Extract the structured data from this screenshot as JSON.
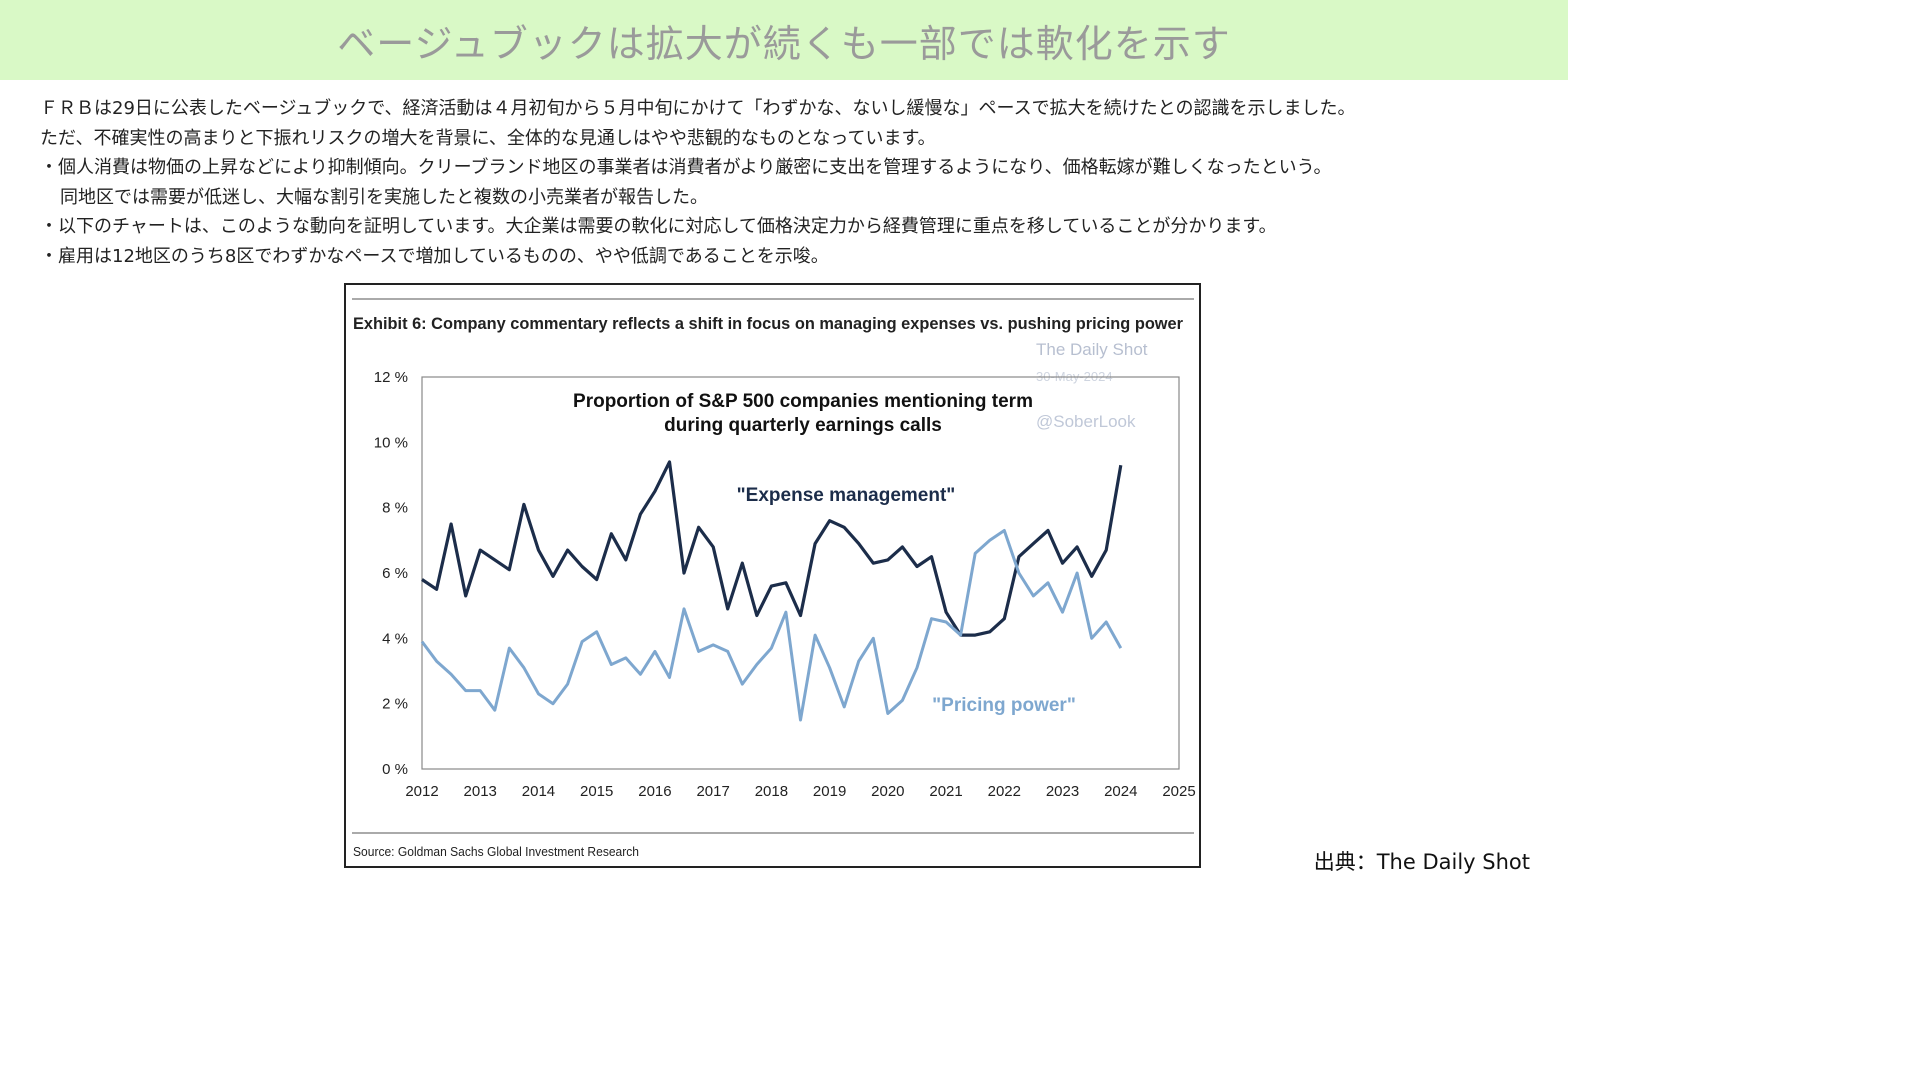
{
  "header": {
    "title": "ベージュブックは拡大が続くも一部では軟化を示す"
  },
  "body": {
    "lines": [
      "ＦＲＢは29日に公表したベージュブックで、経済活動は４月初旬から５月中旬にかけて「わずかな、ないし緩慢な」ペースで拡大を続けたとの認識を示しました。",
      "ただ、不確実性の高まりと下振れリスクの増大を背景に、全体的な見通しはやや悲観的なものとなっています。",
      "・個人消費は物価の上昇などにより抑制傾向。クリーブランド地区の事業者は消費者がより厳密に支出を管理するようになり、価格転嫁が難しくなったという。",
      "同地区では需要が低迷し、大幅な割引を実施したと複数の小売業者が報告した。",
      "・以下のチャートは、このような動向を証明しています。大企業は需要の軟化に対応して価格決定力から経費管理に重点を移していることが分かります。",
      "・雇用は12地区のうち8区でわずかなペースで増加しているものの、やや低調であることを示唆。"
    ]
  },
  "footer": {
    "source_credit": "出典：The Daily Shot"
  },
  "chart_data": {
    "type": "line",
    "exhibit_title": "Exhibit 6: Company commentary reflects a shift in focus on managing expenses vs. pushing pricing power",
    "title": "Proportion of S&P 500 companies mentioning term during quarterly earnings calls",
    "title_lines": [
      "Proportion of S&P 500 companies mentioning term",
      "during quarterly earnings calls"
    ],
    "watermark": [
      "The Daily Shot",
      "30-May-2024",
      "@SoberLook"
    ],
    "source": "Source: Goldman Sachs Global Investment Research",
    "xlim": [
      2012,
      2025
    ],
    "ylim": [
      0,
      12
    ],
    "x_ticks": [
      "2012",
      "2013",
      "2014",
      "2015",
      "2016",
      "2017",
      "2018",
      "2019",
      "2020",
      "2021",
      "2022",
      "2023",
      "2024",
      "2025"
    ],
    "y_ticks": [
      "0 %",
      "2 %",
      "4 %",
      "6 %",
      "8 %",
      "10 %",
      "12 %"
    ],
    "grid": false,
    "series": [
      {
        "name": "\"Expense management\"",
        "color": "#1c2d4a",
        "x": [
          2012.0,
          2012.25,
          2012.5,
          2012.75,
          2013.0,
          2013.25,
          2013.5,
          2013.75,
          2014.0,
          2014.25,
          2014.5,
          2014.75,
          2015.0,
          2015.25,
          2015.5,
          2015.75,
          2016.0,
          2016.25,
          2016.5,
          2016.75,
          2017.0,
          2017.25,
          2017.5,
          2017.75,
          2018.0,
          2018.25,
          2018.5,
          2018.75,
          2019.0,
          2019.25,
          2019.5,
          2019.75,
          2020.0,
          2020.25,
          2020.5,
          2020.75,
          2021.0,
          2021.25,
          2021.5,
          2021.75,
          2022.0,
          2022.25,
          2022.5,
          2022.75,
          2023.0,
          2023.25,
          2023.5,
          2023.75,
          2024.0
        ],
        "values": [
          5.8,
          5.5,
          7.5,
          5.3,
          6.7,
          6.4,
          6.1,
          8.1,
          6.7,
          5.9,
          6.7,
          6.2,
          5.8,
          7.2,
          6.4,
          7.8,
          8.5,
          9.4,
          6.0,
          7.4,
          6.8,
          4.9,
          6.3,
          4.7,
          5.6,
          5.7,
          4.7,
          6.9,
          7.6,
          7.4,
          6.9,
          6.3,
          6.4,
          6.8,
          6.2,
          6.5,
          4.8,
          4.1,
          4.1,
          4.2,
          4.6,
          6.5,
          6.9,
          7.3,
          6.3,
          6.8,
          5.9,
          6.7,
          9.3
        ]
      },
      {
        "name": "\"Pricing power\"",
        "color": "#7ea7cf",
        "x": [
          2012.0,
          2012.25,
          2012.5,
          2012.75,
          2013.0,
          2013.25,
          2013.5,
          2013.75,
          2014.0,
          2014.25,
          2014.5,
          2014.75,
          2015.0,
          2015.25,
          2015.5,
          2015.75,
          2016.0,
          2016.25,
          2016.5,
          2016.75,
          2017.0,
          2017.25,
          2017.5,
          2017.75,
          2018.0,
          2018.25,
          2018.5,
          2018.75,
          2019.0,
          2019.25,
          2019.5,
          2019.75,
          2020.0,
          2020.25,
          2020.5,
          2020.75,
          2021.0,
          2021.25,
          2021.5,
          2021.75,
          2022.0,
          2022.25,
          2022.5,
          2022.75,
          2023.0,
          2023.25,
          2023.5,
          2023.75,
          2024.0
        ],
        "values": [
          3.9,
          3.3,
          2.9,
          2.4,
          2.4,
          1.8,
          3.7,
          3.1,
          2.3,
          2.0,
          2.6,
          3.9,
          4.2,
          3.2,
          3.4,
          2.9,
          3.6,
          2.8,
          4.9,
          3.6,
          3.8,
          3.6,
          2.6,
          3.2,
          3.7,
          4.8,
          1.5,
          4.1,
          3.1,
          1.9,
          3.3,
          4.0,
          1.7,
          2.1,
          3.1,
          4.6,
          4.5,
          4.1,
          6.6,
          7.0,
          7.3,
          6.0,
          5.3,
          5.7,
          4.8,
          6.0,
          4.0,
          4.5,
          3.7
        ]
      }
    ],
    "series_labels": [
      {
        "text": "\"Expense management\"",
        "color": "#1c2d4a"
      },
      {
        "text": "\"Pricing power\"",
        "color": "#7ea7cf"
      }
    ]
  }
}
